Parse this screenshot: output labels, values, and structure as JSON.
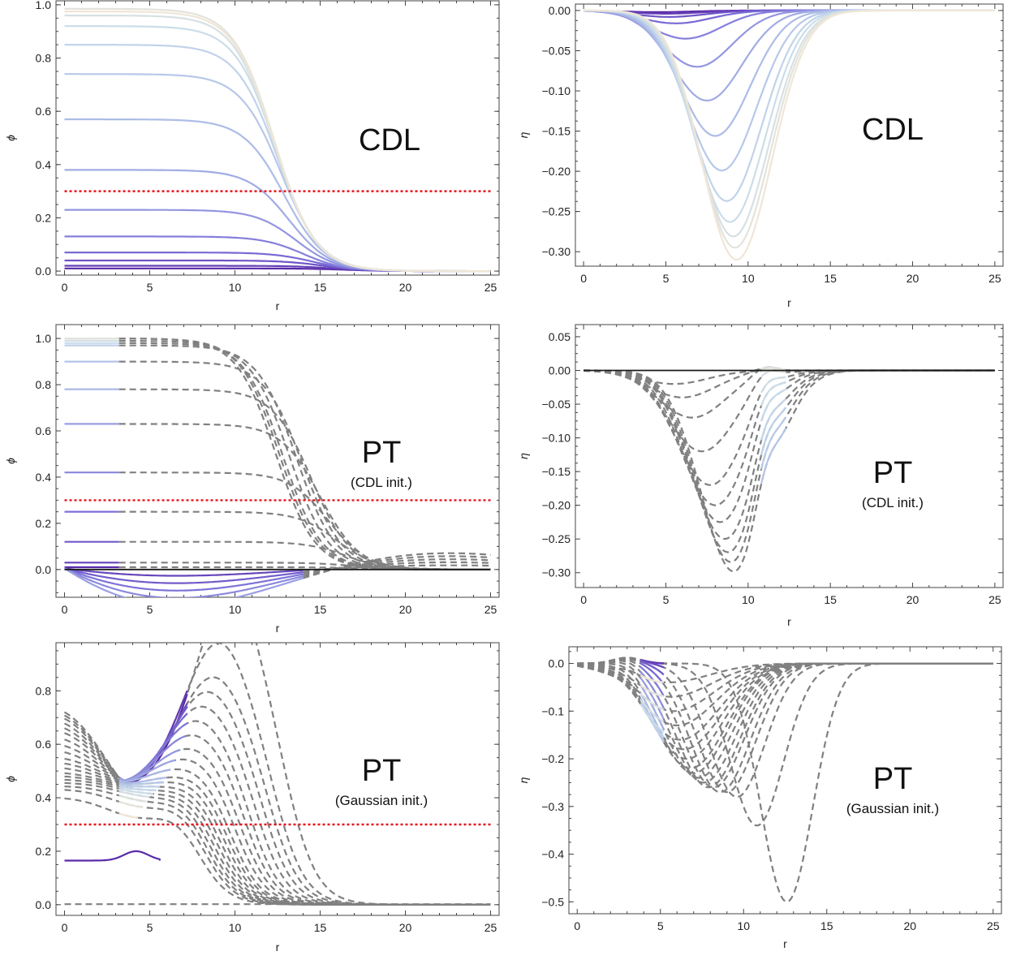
{
  "colors": {
    "ramp": [
      "#5a2aa8",
      "#7b6fd8",
      "#a8b6e6",
      "#c8dceb",
      "#efe6d6"
    ],
    "dashed": "#808080",
    "threshold": "#e8141e",
    "zero_line": "#1a1a1a"
  },
  "chart_data": [
    {
      "name": "phi-cdl",
      "type": "line",
      "ylabel": "ϕ",
      "xlabel": "r",
      "xlim": [
        -0.5,
        25.5
      ],
      "ylim": [
        -0.015,
        1.015
      ],
      "xticks": [
        0,
        5,
        10,
        15,
        20,
        25
      ],
      "yticks": [
        0.0,
        0.2,
        0.4,
        0.6,
        0.8,
        1.0
      ],
      "label": "CDL",
      "sublabel": "",
      "threshold": 0.3,
      "solid_curves": {
        "family": "kink",
        "r0": [
          16.5,
          15.8,
          15.2,
          14.6,
          14.0,
          13.6,
          13.2,
          12.9,
          12.7,
          12.5,
          12.4,
          12.3
        ],
        "amp": [
          0.01,
          0.02,
          0.04,
          0.07,
          0.13,
          0.23,
          0.38,
          0.57,
          0.74,
          0.85,
          0.92,
          0.96
        ],
        "width": 2.4,
        "extra_amp": [
          0.985,
          0.975
        ]
      },
      "dashed_curves": []
    },
    {
      "name": "eta-cdl",
      "type": "line",
      "ylabel": "η",
      "xlabel": "r",
      "xlim": [
        -0.5,
        25.5
      ],
      "ylim": [
        -0.318,
        0.008
      ],
      "xticks": [
        0,
        5,
        10,
        15,
        20,
        25
      ],
      "yticks": [
        0.0,
        -0.05,
        -0.1,
        -0.15,
        -0.2,
        -0.25,
        -0.3
      ],
      "label": "CDL",
      "sublabel": "",
      "threshold": null,
      "solid_curves": {
        "family": "trough",
        "depth": [
          0.002,
          0.004,
          0.008,
          0.016,
          0.035,
          0.07,
          0.112,
          0.156,
          0.199,
          0.237,
          0.263,
          0.281,
          0.295,
          0.31
        ],
        "center": [
          4.5,
          5.0,
          5.2,
          5.6,
          6.2,
          6.9,
          7.5,
          8.0,
          8.4,
          8.7,
          8.9,
          9.1,
          9.2,
          9.3
        ]
      },
      "dashed_curves": []
    },
    {
      "name": "phi-pt-cdl",
      "type": "line",
      "ylabel": "ϕ",
      "xlabel": "r",
      "xlim": [
        -0.5,
        25.5
      ],
      "ylim": [
        -0.12,
        1.06
      ],
      "xticks": [
        0,
        5,
        10,
        15,
        20,
        25
      ],
      "yticks": [
        0.0,
        0.2,
        0.4,
        0.6,
        0.8,
        1.0
      ],
      "label": "PT",
      "sublabel": "(CDL init.)",
      "threshold": 0.3,
      "solid_curves": {
        "family": "pt-phi"
      },
      "dashed_curves": {
        "family": "pt-phi",
        "amp": [
          1.0,
          1.0,
          0.99,
          0.98,
          0.97,
          0.9,
          0.78,
          0.63,
          0.42,
          0.25,
          0.12,
          0.03,
          0.01
        ],
        "r0": [
          12.4,
          12.6,
          12.8,
          13.2,
          13.6,
          14.0,
          14.5,
          15.0,
          15.5,
          16.0,
          16.5,
          17.0,
          17.5
        ]
      }
    },
    {
      "name": "eta-pt-cdl",
      "type": "line",
      "ylabel": "η",
      "xlabel": "r",
      "xlim": [
        -0.5,
        25.5
      ],
      "ylim": [
        -0.322,
        0.068
      ],
      "xticks": [
        0,
        5,
        10,
        15,
        20,
        25
      ],
      "yticks": [
        0.05,
        0.0,
        -0.05,
        -0.1,
        -0.15,
        -0.2,
        -0.25,
        -0.3
      ],
      "label": "PT",
      "sublabel": "(CDL init.)",
      "threshold": null,
      "solid_curves": {
        "family": "pt-eta"
      },
      "dashed_curves": {
        "family": "pt-eta",
        "depth": [
          0.3,
          0.285,
          0.27,
          0.25,
          0.225,
          0.2,
          0.17,
          0.12,
          0.07,
          0.04,
          0.02
        ],
        "center": [
          9.2,
          9.0,
          8.8,
          8.6,
          8.3,
          8.0,
          7.7,
          7.2,
          6.6,
          6.0,
          5.5
        ]
      }
    },
    {
      "name": "phi-pt-gauss",
      "type": "line",
      "ylabel": "ϕ",
      "xlabel": "r",
      "xlim": [
        -0.5,
        25.5
      ],
      "ylim": [
        -0.04,
        0.98
      ],
      "xticks": [
        0,
        5,
        10,
        15,
        20,
        25
      ],
      "yticks": [
        0.0,
        0.2,
        0.4,
        0.6,
        0.8
      ],
      "label": "PT",
      "sublabel": "(Gaussian init.)",
      "threshold": 0.3,
      "solid_curves": {
        "family": "gauss-phi"
      },
      "dashed_curves": {
        "family": "gauss-phi",
        "amp0": [
          0.9,
          0.88,
          0.86,
          0.83,
          0.8,
          0.77,
          0.73,
          0.69,
          0.65,
          0.61,
          0.58,
          0.55,
          0.52,
          0.5,
          0.48,
          0.46,
          0.44,
          0.42,
          0.37
        ],
        "peakr": [
          9.8,
          9.0,
          8.6,
          8.2,
          7.8,
          7.4,
          7.1,
          6.8,
          6.5,
          6.2,
          6.0,
          5.8,
          5.6,
          5.4,
          5.2,
          5.0,
          4.8,
          4.6,
          4.3
        ],
        "peakv": [
          0.95,
          0.78,
          0.67,
          0.64,
          0.61,
          0.58,
          0.55,
          0.52,
          0.5,
          0.48,
          0.46,
          0.45,
          0.44,
          0.43,
          0.42,
          0.41,
          0.4,
          0.39,
          0.38
        ]
      }
    },
    {
      "name": "eta-pt-gauss",
      "type": "line",
      "ylabel": "η",
      "xlabel": "r",
      "xlim": [
        -0.5,
        25.5
      ],
      "ylim": [
        -0.525,
        0.035
      ],
      "xticks": [
        0,
        5,
        10,
        15,
        20,
        25
      ],
      "yticks": [
        0.0,
        -0.1,
        -0.2,
        -0.3,
        -0.4,
        -0.5
      ],
      "label": "PT",
      "sublabel": "(Gaussian init.)",
      "threshold": null,
      "solid_curves": {
        "family": "gauss-eta"
      },
      "dashed_curves": {
        "family": "gauss-eta",
        "depth": [
          0.5,
          0.34,
          0.28,
          0.27,
          0.27,
          0.26,
          0.26,
          0.25,
          0.24,
          0.23,
          0.22,
          0.2,
          0.18,
          0.16,
          0.13,
          0.1,
          0.07,
          0.04
        ],
        "center": [
          12.6,
          10.8,
          9.6,
          9.0,
          8.6,
          8.2,
          7.9,
          7.6,
          7.3,
          7.0,
          6.8,
          6.6,
          6.4,
          6.2,
          6.0,
          5.8,
          5.6,
          5.4
        ]
      }
    }
  ]
}
